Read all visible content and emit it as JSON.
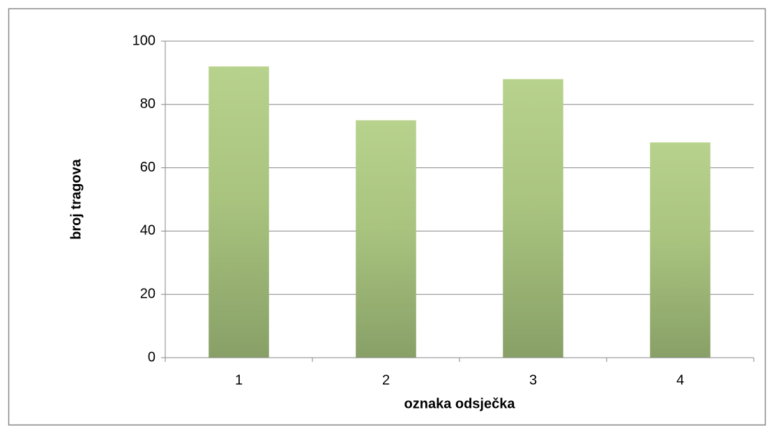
{
  "chart_data": {
    "type": "bar",
    "x_label": "oznaka odsječka",
    "y_label": "broj tragova",
    "categories": [
      "1",
      "2",
      "3",
      "4"
    ],
    "values": [
      92,
      75,
      88,
      68
    ],
    "color": "#a3be7c",
    "ylim": [
      0,
      100
    ],
    "yticks": [
      0,
      20,
      40,
      60,
      80,
      100
    ],
    "grid": true
  }
}
